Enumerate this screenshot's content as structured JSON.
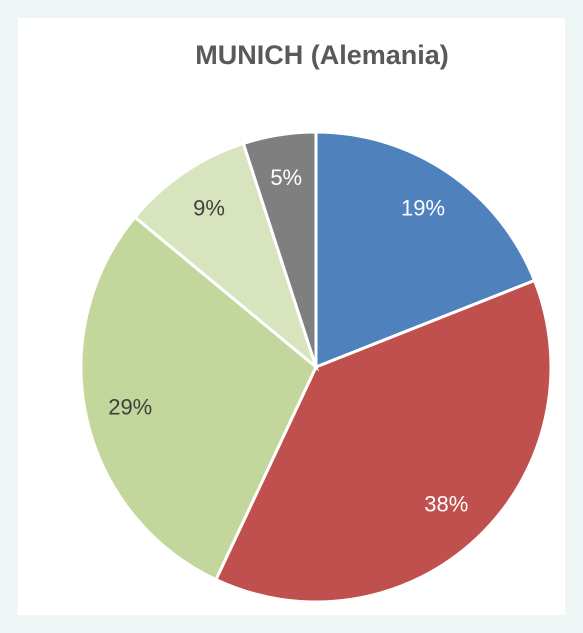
{
  "chart_data": {
    "type": "pie",
    "title": "MUNICH (Alemania)",
    "values": [
      19,
      38,
      29,
      9,
      5
    ],
    "value_labels": [
      "19%",
      "38%",
      "29%",
      "9%",
      "5%"
    ],
    "colors": [
      "#4f81bd",
      "#c0504d",
      "#c3d69b",
      "#d7e4bd",
      "#7f7f7f"
    ]
  }
}
